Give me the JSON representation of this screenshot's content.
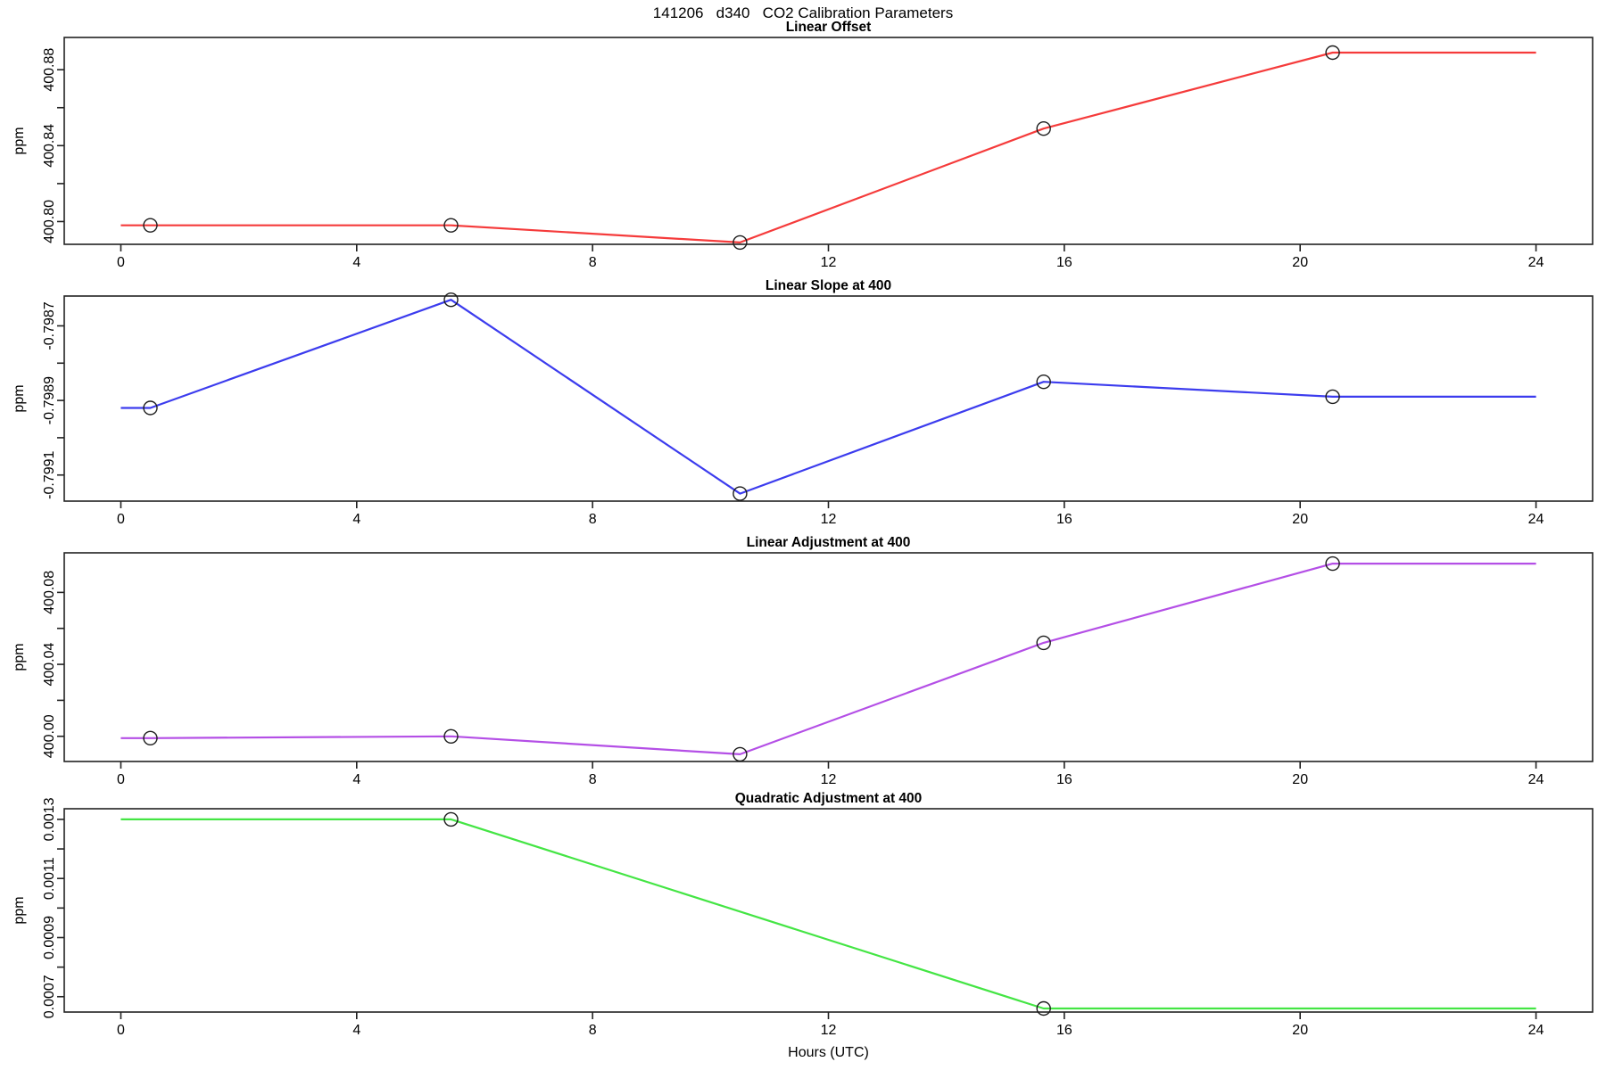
{
  "chart_data": {
    "type": "line",
    "title": "141206   d340   CO2 Calibration Parameters",
    "marker": "open-circle",
    "x_axis": {
      "label": "Hours (UTC)",
      "lim": [
        -0.96,
        24.96
      ],
      "ticks": [
        0,
        4,
        8,
        12,
        16,
        20,
        24
      ]
    },
    "panels": [
      {
        "id": "linear-offset",
        "title": "Linear Offset",
        "ylabel": "ppm",
        "color": "#f53b3b",
        "ylim": [
          400.788,
          400.897
        ],
        "yticks": [
          {
            "value": 400.8,
            "label": "400.80"
          },
          {
            "value": 400.82,
            "label": ""
          },
          {
            "value": 400.84,
            "label": "400.84"
          },
          {
            "value": 400.86,
            "label": ""
          },
          {
            "value": 400.88,
            "label": "400.88"
          }
        ],
        "points": [
          [
            0.5,
            400.798
          ],
          [
            5.6,
            400.798
          ],
          [
            10.5,
            400.789
          ],
          [
            15.65,
            400.849
          ],
          [
            20.55,
            400.889
          ]
        ],
        "line": [
          [
            0,
            400.798
          ],
          [
            0.5,
            400.798
          ],
          [
            5.6,
            400.798
          ],
          [
            10.5,
            400.789
          ],
          [
            15.65,
            400.849
          ],
          [
            20.55,
            400.889
          ],
          [
            24,
            400.889
          ]
        ]
      },
      {
        "id": "linear-slope-at-400",
        "title": "Linear Slope at 400",
        "ylabel": "ppm",
        "color": "#3c3cee",
        "ylim": [
          -0.79917,
          -0.79862
        ],
        "yticks": [
          {
            "value": -0.7991,
            "label": "-0.7991"
          },
          {
            "value": -0.799,
            "label": ""
          },
          {
            "value": -0.7989,
            "label": "-0.7989"
          },
          {
            "value": -0.7988,
            "label": ""
          },
          {
            "value": -0.7987,
            "label": "-0.7987"
          }
        ],
        "points": [
          [
            0.5,
            -0.79892
          ],
          [
            5.6,
            -0.79863
          ],
          [
            10.5,
            -0.79915
          ],
          [
            15.65,
            -0.79885
          ],
          [
            20.55,
            -0.79889
          ]
        ],
        "line": [
          [
            0,
            -0.79892
          ],
          [
            0.5,
            -0.79892
          ],
          [
            5.6,
            -0.79863
          ],
          [
            10.5,
            -0.79915
          ],
          [
            15.65,
            -0.79885
          ],
          [
            20.55,
            -0.79889
          ],
          [
            24,
            -0.79889
          ]
        ]
      },
      {
        "id": "linear-adjustment-at-400",
        "title": "Linear Adjustment at 400",
        "ylabel": "ppm",
        "color": "#b44fe6",
        "ylim": [
          399.986,
          400.102
        ],
        "yticks": [
          {
            "value": 400.0,
            "label": "400.00"
          },
          {
            "value": 400.02,
            "label": ""
          },
          {
            "value": 400.04,
            "label": "400.04"
          },
          {
            "value": 400.06,
            "label": ""
          },
          {
            "value": 400.08,
            "label": "400.08"
          }
        ],
        "points": [
          [
            0.5,
            399.999
          ],
          [
            5.6,
            400.0
          ],
          [
            10.5,
            399.99
          ],
          [
            15.65,
            400.052
          ],
          [
            20.55,
            400.096
          ]
        ],
        "line": [
          [
            0,
            399.999
          ],
          [
            0.5,
            399.999
          ],
          [
            5.6,
            400.0
          ],
          [
            10.5,
            399.99
          ],
          [
            15.65,
            400.052
          ],
          [
            20.55,
            400.096
          ],
          [
            24,
            400.096
          ]
        ]
      },
      {
        "id": "quadratic-adjustment-at-400",
        "title": "Quadratic Adjustment at 400",
        "ylabel": "ppm",
        "color": "#44e544",
        "ylim": [
          0.000648,
          0.001336
        ],
        "yticks": [
          {
            "value": 0.0007,
            "label": "0.0007"
          },
          {
            "value": 0.0008,
            "label": ""
          },
          {
            "value": 0.0009,
            "label": "0.0009"
          },
          {
            "value": 0.001,
            "label": ""
          },
          {
            "value": 0.0011,
            "label": "0.0011"
          },
          {
            "value": 0.0012,
            "label": ""
          },
          {
            "value": 0.0013,
            "label": "0.0013"
          }
        ],
        "points": [
          [
            5.6,
            0.0013
          ],
          [
            15.65,
            0.00066
          ]
        ],
        "line": [
          [
            0,
            0.0013
          ],
          [
            5.6,
            0.0013
          ],
          [
            15.65,
            0.00066
          ],
          [
            24,
            0.00066
          ]
        ]
      }
    ]
  }
}
